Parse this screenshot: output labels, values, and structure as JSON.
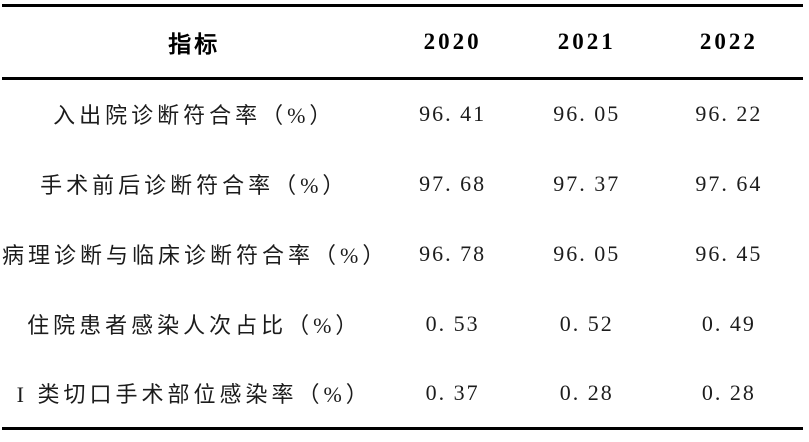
{
  "table": {
    "header": {
      "indicator": "指标",
      "year1": "2020",
      "year2": "2021",
      "year3": "2022"
    },
    "rows": [
      {
        "label": "入出院诊断符合率（%）",
        "v2020": "96. 41",
        "v2021": "96. 05",
        "v2022": "96. 22"
      },
      {
        "label": "手术前后诊断符合率（%）",
        "v2020": "97. 68",
        "v2021": "97. 37",
        "v2022": "97. 64"
      },
      {
        "label": "病理诊断与临床诊断符合率（%）",
        "v2020": "96. 78",
        "v2021": "96. 05",
        "v2022": "96. 45"
      },
      {
        "label": "住院患者感染人次占比（%）",
        "v2020": "0. 53",
        "v2021": "0. 52",
        "v2022": "0. 49"
      },
      {
        "label": "I 类切口手术部位感染率（%）",
        "v2020": "0. 37",
        "v2021": "0. 28",
        "v2022": "0. 28"
      }
    ],
    "colors": {
      "text": "#1c1c1c",
      "rule": "#000000",
      "background": "#ffffff"
    }
  }
}
